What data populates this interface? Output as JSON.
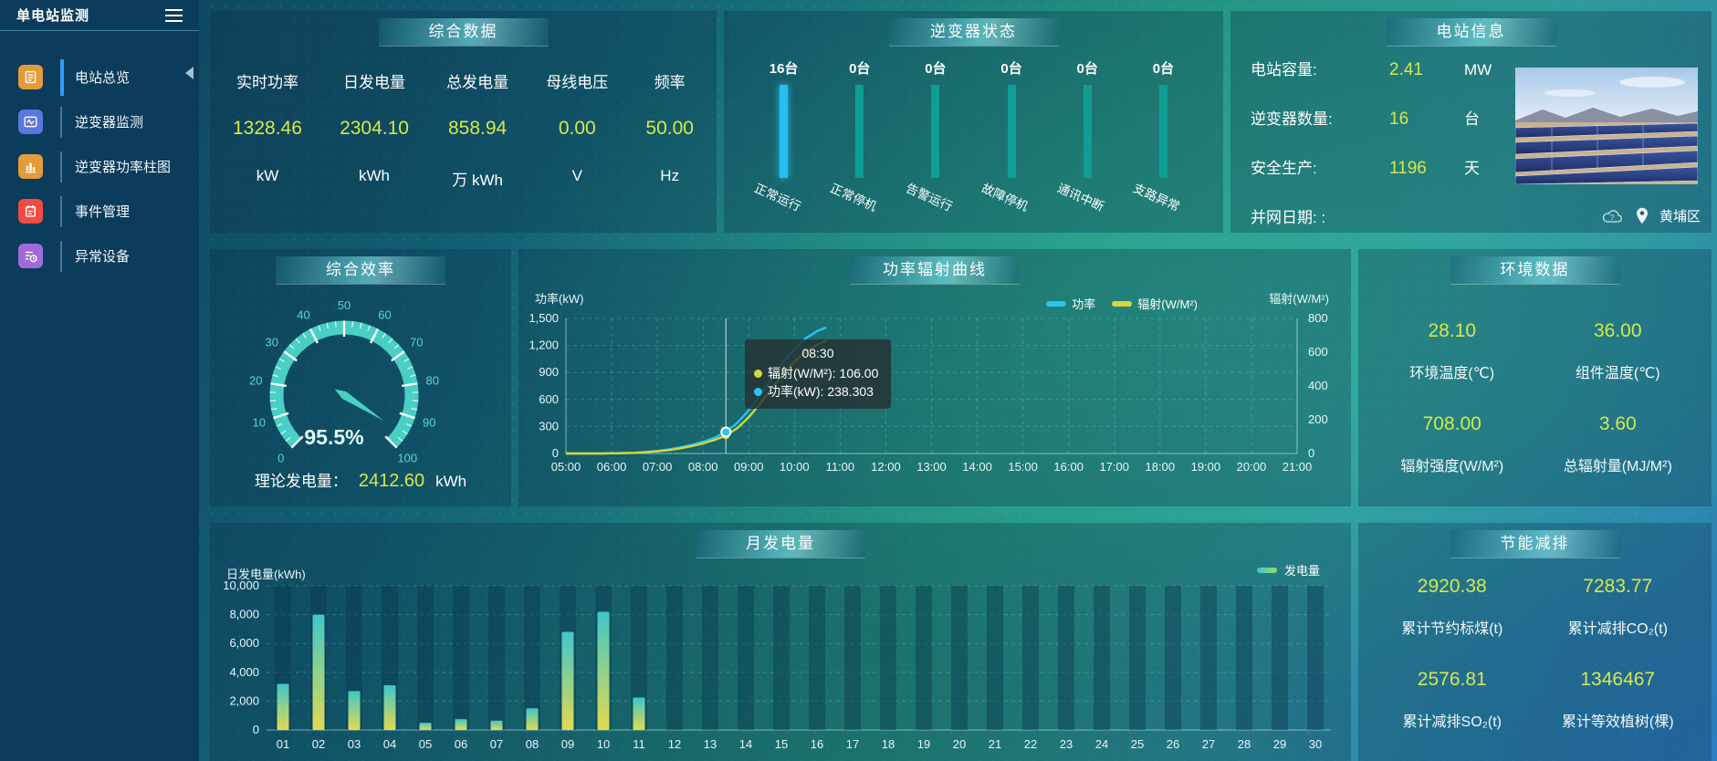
{
  "app": {
    "title": "单电站监测"
  },
  "sidebar": {
    "items": [
      {
        "label": "电站总览",
        "icon": "overview",
        "icon_color": "#e39b3b",
        "active": true
      },
      {
        "label": "逆变器监测",
        "icon": "inverter-monitor",
        "icon_color": "#5b76dd",
        "active": false
      },
      {
        "label": "逆变器功率柱图",
        "icon": "inverter-power-bars",
        "icon_color": "#e39b3b",
        "active": false
      },
      {
        "label": "事件管理",
        "icon": "event-management",
        "icon_color": "#ee4c44",
        "active": false
      },
      {
        "label": "异常设备",
        "icon": "abnormal-devices",
        "icon_color": "#a06bd8",
        "active": false
      }
    ]
  },
  "summary": {
    "title": "综合数据",
    "metrics": [
      {
        "label": "实时功率",
        "value": "1328.46",
        "unit": "kW"
      },
      {
        "label": "日发电量",
        "value": "2304.10",
        "unit": "kWh"
      },
      {
        "label": "总发电量",
        "value": "858.94",
        "unit": "万 kWh"
      },
      {
        "label": "母线电压",
        "value": "0.00",
        "unit": "V"
      },
      {
        "label": "频率",
        "value": "50.00",
        "unit": "Hz"
      }
    ]
  },
  "station_info": {
    "title": "电站信息",
    "rows": [
      {
        "label": "电站容量:",
        "value": "2.41",
        "unit": "MW"
      },
      {
        "label": "逆变器数量:",
        "value": "16",
        "unit": "台"
      },
      {
        "label": "安全生产:",
        "value": "1196",
        "unit": "天"
      },
      {
        "label": "并网日期: :",
        "value": "",
        "unit": ""
      }
    ],
    "location": "黄埔区"
  },
  "efficiency": {
    "title": "综合效率",
    "theory_label": "理论发电量：",
    "theory_value": "2412.60",
    "theory_unit": "kWh"
  },
  "environment": {
    "title": "环境数据",
    "metrics": [
      {
        "value": "28.10",
        "label": "环境温度(℃)"
      },
      {
        "value": "36.00",
        "label": "组件温度(℃)"
      },
      {
        "value": "708.00",
        "label": "辐射强度(W/M²)"
      },
      {
        "value": "3.60",
        "label": "总辐射量(MJ/M²)"
      }
    ]
  },
  "energy_saving": {
    "title": "节能减排",
    "metrics": [
      {
        "value": "2920.38",
        "label": "累计节约标煤(t)"
      },
      {
        "value": "7283.77",
        "label": "累计减排CO₂(t)"
      },
      {
        "value": "2576.81",
        "label": "累计减排SO₂(t)"
      },
      {
        "value": "1346467",
        "label": "累计等效植树(棵)"
      }
    ]
  },
  "chart_data": [
    {
      "id": "inverter_status",
      "type": "bar",
      "title": "逆变器状态",
      "categories": [
        "正常运行",
        "正常停机",
        "告警运行",
        "故障停机",
        "通讯中断",
        "支路异常"
      ],
      "values": [
        16,
        0,
        0,
        0,
        0,
        0
      ],
      "value_labels": [
        "16台",
        "0台",
        "0台",
        "0台",
        "0台",
        "0台"
      ],
      "bar_colors": [
        "#29bdf2",
        "#0f9e93",
        "#0f9e93",
        "#0f9e93",
        "#0f9e93",
        "#0f9e93"
      ]
    },
    {
      "id": "power_radiation",
      "type": "line",
      "title": "功率辐射曲线",
      "left_axis": {
        "title": "功率(kW)",
        "min": 0,
        "max": 1500,
        "ticks": [
          0,
          300,
          600,
          900,
          1200,
          1500
        ]
      },
      "right_axis": {
        "title": "辐射(W/M²)",
        "min": 0,
        "max": 800,
        "ticks": [
          0,
          200,
          400,
          600,
          800
        ]
      },
      "x_ticks": [
        "05:00",
        "06:00",
        "07:00",
        "08:00",
        "09:00",
        "10:00",
        "11:00",
        "12:00",
        "13:00",
        "14:00",
        "15:00",
        "16:00",
        "17:00",
        "18:00",
        "19:00",
        "20:00",
        "21:00"
      ],
      "legend": [
        {
          "name": "功率",
          "color": "#29c4f0"
        },
        {
          "name": "辐射(W/M²)",
          "color": "#d9d53a"
        }
      ],
      "series": [
        {
          "name": "功率",
          "axis": "left",
          "color": "#29c4f0",
          "points": [
            [
              5,
              0
            ],
            [
              5.25,
              0
            ],
            [
              5.5,
              0
            ],
            [
              5.75,
              1
            ],
            [
              6,
              2
            ],
            [
              6.25,
              4
            ],
            [
              6.5,
              8
            ],
            [
              6.75,
              16
            ],
            [
              7,
              28
            ],
            [
              7.25,
              45
            ],
            [
              7.5,
              68
            ],
            [
              7.75,
              95
            ],
            [
              8,
              130
            ],
            [
              8.25,
              175
            ],
            [
              8.5,
              238.3
            ],
            [
              8.75,
              340
            ],
            [
              9,
              480
            ],
            [
              9.25,
              650
            ],
            [
              9.5,
              830
            ],
            [
              9.75,
              1010
            ],
            [
              10,
              1160
            ],
            [
              10.25,
              1280
            ],
            [
              10.5,
              1360
            ],
            [
              10.7,
              1400
            ]
          ]
        },
        {
          "name": "辐射(W/M²)",
          "axis": "right",
          "color": "#d9d53a",
          "points": [
            [
              5,
              0
            ],
            [
              5.25,
              0
            ],
            [
              5.5,
              0
            ],
            [
              5.75,
              0
            ],
            [
              6,
              1
            ],
            [
              6.25,
              2
            ],
            [
              6.5,
              4
            ],
            [
              6.75,
              8
            ],
            [
              7,
              13
            ],
            [
              7.25,
              20
            ],
            [
              7.5,
              30
            ],
            [
              7.75,
              43
            ],
            [
              8,
              60
            ],
            [
              8.25,
              80
            ],
            [
              8.5,
              106
            ],
            [
              8.75,
              150
            ],
            [
              9,
              215
            ],
            [
              9.25,
              295
            ],
            [
              9.5,
              385
            ],
            [
              9.75,
              470
            ],
            [
              10,
              545
            ],
            [
              10.25,
              605
            ],
            [
              10.5,
              645
            ],
            [
              10.7,
              668
            ]
          ]
        }
      ],
      "tooltip": {
        "time": "08:30",
        "cursor_hour": 8.5,
        "cursor_values": {
          "power": 238.303,
          "radiation": 106
        },
        "rows": [
          {
            "text": "辐射(W/M²): 106.00",
            "color": "#d9d53a"
          },
          {
            "text": "功率(kW): 238.303",
            "color": "#29c4f0"
          }
        ]
      }
    },
    {
      "id": "monthly_generation",
      "type": "bar",
      "title": "月发电量",
      "ylabel": "日发电量(kWh)",
      "legend": "发电量",
      "categories": [
        "01",
        "02",
        "03",
        "04",
        "05",
        "06",
        "07",
        "08",
        "09",
        "10",
        "11",
        "12",
        "13",
        "14",
        "15",
        "16",
        "17",
        "18",
        "19",
        "20",
        "21",
        "22",
        "23",
        "24",
        "25",
        "26",
        "27",
        "28",
        "29",
        "30"
      ],
      "values": [
        3200,
        8000,
        2700,
        3100,
        500,
        750,
        650,
        1500,
        6800,
        8200,
        2250,
        0,
        0,
        0,
        0,
        0,
        0,
        0,
        0,
        0,
        0,
        0,
        0,
        0,
        0,
        0,
        0,
        0,
        0,
        0
      ],
      "ylim": [
        0,
        10000
      ],
      "yticks": [
        0,
        2000,
        4000,
        6000,
        8000,
        10000
      ],
      "bar_color_top": "#3fc7c9",
      "bar_color_bottom": "#e3d94f",
      "legend_color2": "#8fdc66"
    },
    {
      "id": "efficiency_gauge",
      "type": "gauge",
      "title": "综合效率",
      "value": 95.5,
      "value_display": "95.5%",
      "min": 0,
      "max": 100,
      "tick_step": 10,
      "color": "#49cfc4"
    }
  ]
}
